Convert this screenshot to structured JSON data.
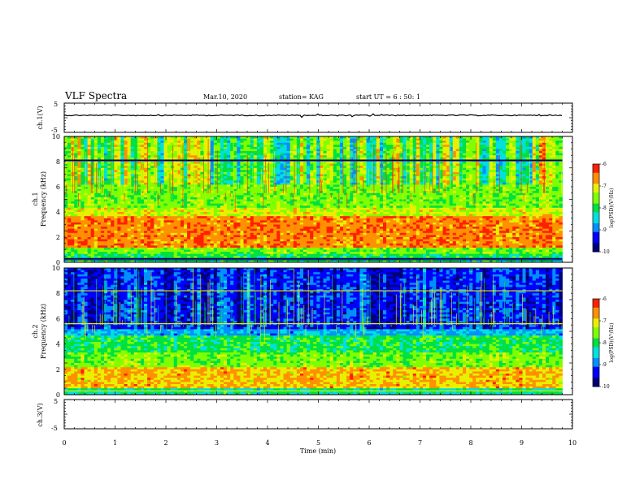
{
  "header": {
    "title": "VLF Spectra",
    "date": "Mar.10, 2020",
    "station": "station= KAG",
    "start": "start  UT =   6 : 50: 1"
  },
  "chart_data": [
    {
      "type": "line",
      "name": "ch1-waveform",
      "ylabel": "ch.1(V)",
      "ylim": [
        -5,
        5
      ],
      "yticks": [
        "5",
        "-5"
      ],
      "xlim": [
        0,
        10
      ]
    },
    {
      "type": "heatmap",
      "name": "ch1-spectrogram",
      "ylabel": "ch.1\nFrequency (kHz)",
      "ylabel_lines": [
        "ch.1",
        "Frequency (kHz)"
      ],
      "ylim": [
        0,
        10
      ],
      "yticks": [
        "0",
        "2",
        "4",
        "6",
        "8",
        "10"
      ],
      "xlim": [
        0,
        10
      ],
      "data_xmax": 9.8,
      "colorbar": {
        "range": [
          -10,
          -6
        ],
        "ticks": [
          "-6",
          "-7",
          "-8",
          "-9",
          "-10"
        ],
        "label": "log(PSD)(V²/Hz)"
      }
    },
    {
      "type": "heatmap",
      "name": "ch2-spectrogram",
      "ylabel": "ch.2\nFrequency (kHz)",
      "ylabel_lines": [
        "ch.2",
        "Frequency (kHz)"
      ],
      "ylim": [
        0,
        10
      ],
      "yticks": [
        "0",
        "2",
        "4",
        "6",
        "8",
        "10"
      ],
      "xlim": [
        0,
        10
      ],
      "data_xmax": 9.8,
      "colorbar": {
        "range": [
          -10,
          -6
        ],
        "ticks": [
          "-6",
          "-7",
          "-8",
          "-9",
          "-10"
        ],
        "label": "log(PSD)(V²/Hz)"
      }
    },
    {
      "type": "line",
      "name": "ch3-waveform",
      "ylabel": "ch.3(V)",
      "ylim": [
        -5,
        5
      ],
      "yticks": [
        "5",
        "-5"
      ],
      "xlim": [
        0,
        10
      ]
    }
  ],
  "xaxis": {
    "label": "Time (min)",
    "ticks": [
      "0",
      "1",
      "2",
      "3",
      "4",
      "5",
      "6",
      "7",
      "8",
      "9",
      "10"
    ],
    "range": [
      0,
      10
    ]
  },
  "colormap": [
    "#00007a",
    "#0000ff",
    "#0090ff",
    "#00e0e0",
    "#00e040",
    "#80ff00",
    "#e8f000",
    "#ff9000",
    "#ff2000",
    "#ffffff"
  ]
}
